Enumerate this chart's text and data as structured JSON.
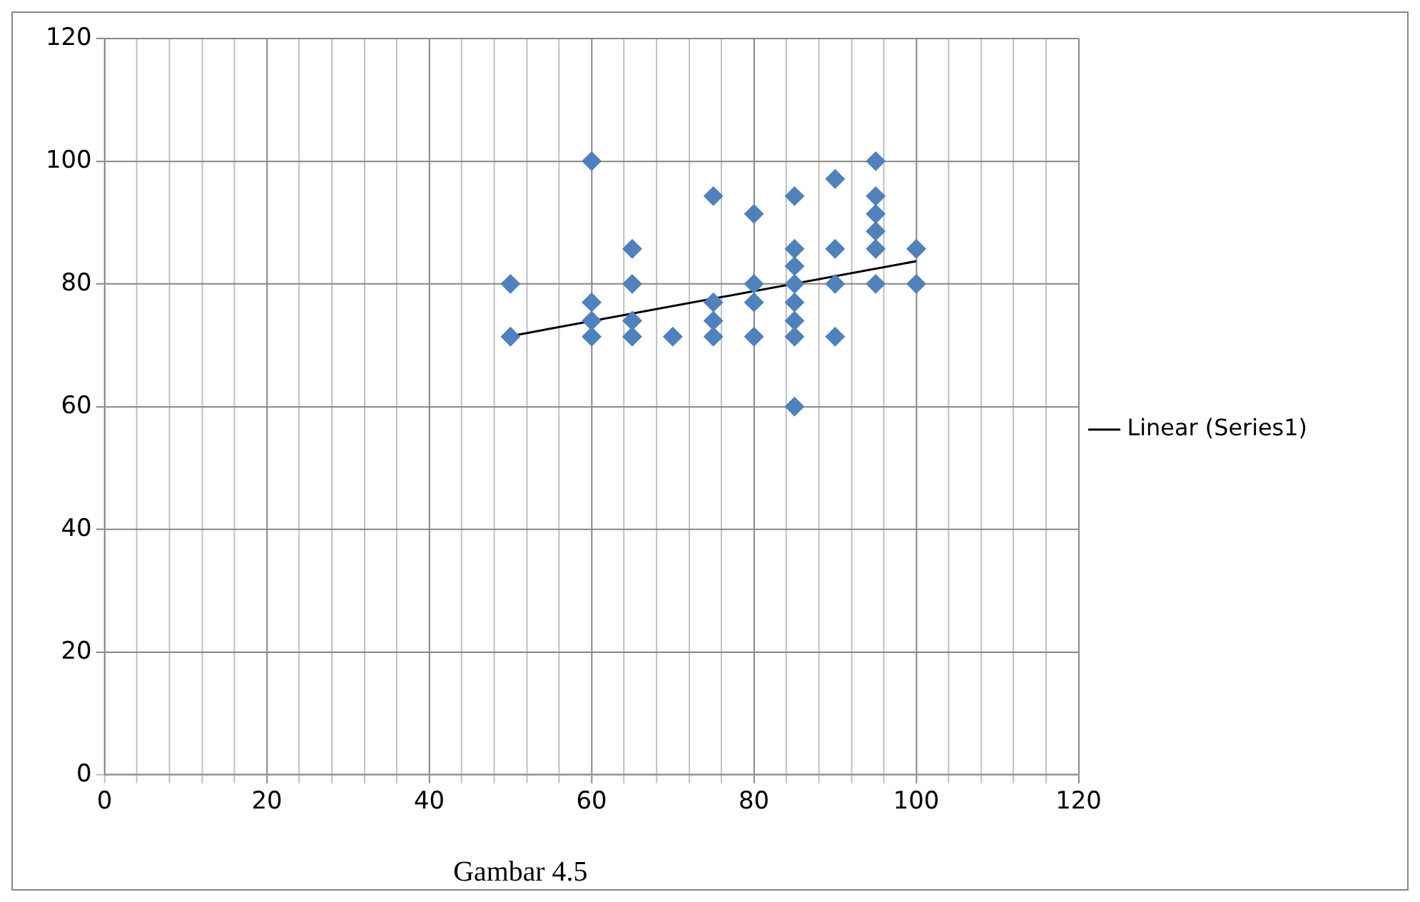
{
  "chart_data": {
    "type": "scatter",
    "marker": "diamond",
    "grid": true,
    "legend": "right",
    "xlim": [
      0,
      120
    ],
    "ylim": [
      0,
      120
    ],
    "xticks": [
      0,
      {
        "value": 4,
        "label": null
      },
      {
        "value": 8,
        "label": null
      },
      {
        "value": 12,
        "label": null
      },
      {
        "value": 16,
        "label": null
      },
      20,
      {
        "value": 24,
        "label": null
      },
      {
        "value": 28,
        "label": null
      },
      {
        "value": 32,
        "label": null
      },
      {
        "value": 36,
        "label": null
      },
      40,
      {
        "value": 44,
        "label": null
      },
      {
        "value": 48,
        "label": null
      },
      {
        "value": 52,
        "label": null
      },
      {
        "value": 56,
        "label": null
      },
      60,
      {
        "value": 64,
        "label": null
      },
      {
        "value": 68,
        "label": null
      },
      {
        "value": 72,
        "label": null
      },
      {
        "value": 76,
        "label": null
      },
      80,
      {
        "value": 84,
        "label": null
      },
      {
        "value": 88,
        "label": null
      },
      {
        "value": 92,
        "label": null
      },
      {
        "value": 96,
        "label": null
      },
      100,
      {
        "value": 104,
        "label": null
      },
      {
        "value": 108,
        "label": null
      },
      {
        "value": 112,
        "label": null
      },
      {
        "value": 116,
        "label": null
      },
      120
    ],
    "yticks": [
      0,
      20,
      40,
      60,
      80,
      100,
      120
    ],
    "annotations": [
      "Gambar 4.5"
    ],
    "series": [
      {
        "color": "#4f81bd",
        "x": [
          50,
          50,
          60,
          60,
          60,
          60,
          65,
          65,
          65,
          65,
          70,
          75,
          75,
          75,
          75,
          80,
          80,
          80,
          80,
          85,
          85,
          85,
          85,
          85,
          85,
          85,
          85,
          90,
          90,
          90,
          90,
          95,
          95,
          95,
          95,
          95,
          95,
          100,
          100
        ],
        "values": [
          80,
          71.4,
          100,
          77,
          74,
          71.4,
          85.7,
          80,
          74,
          71.4,
          71.4,
          94.3,
          77,
          74,
          71.4,
          91.4,
          80,
          77,
          71.4,
          94.3,
          85.7,
          82.9,
          80,
          77,
          74,
          71.4,
          60,
          97.1,
          85.7,
          80,
          71.4,
          100,
          94.3,
          91.4,
          88.6,
          85.7,
          80,
          85.7,
          80
        ]
      },
      {
        "type": "line",
        "name": "Linear (Series1)",
        "color": "#000000",
        "marker": "none",
        "x": [
          50,
          100
        ],
        "values": [
          71.5,
          83.7
        ]
      }
    ]
  }
}
